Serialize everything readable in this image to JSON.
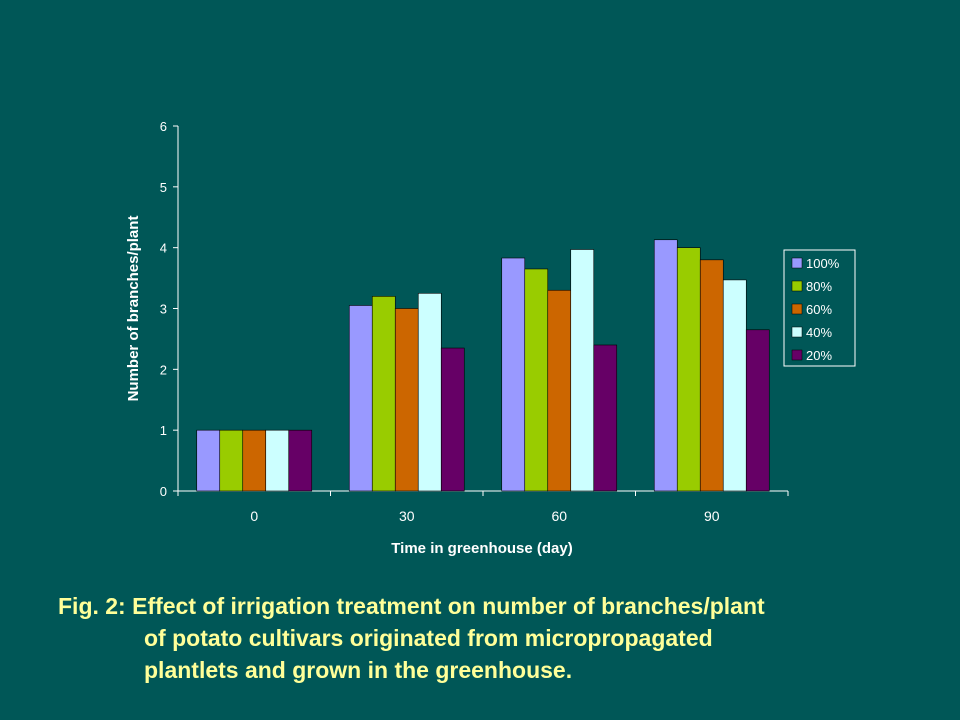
{
  "chart_data": {
    "type": "bar",
    "title": "",
    "xlabel": "Time in greenhouse (day)",
    "ylabel": "Number of branches/plant",
    "categories": [
      "0",
      "30",
      "60",
      "90"
    ],
    "ylim": [
      0,
      6
    ],
    "yticks": [
      "0",
      "1",
      "2",
      "3",
      "4",
      "5",
      "6"
    ],
    "legend_position": "right",
    "series": [
      {
        "name": "100%",
        "color": "#9999ff",
        "values": [
          1.0,
          3.05,
          3.83,
          4.13
        ]
      },
      {
        "name": "80%",
        "color": "#99cc00",
        "values": [
          1.0,
          3.2,
          3.65,
          4.0
        ]
      },
      {
        "name": "60%",
        "color": "#cc6600",
        "values": [
          1.0,
          3.0,
          3.3,
          3.8
        ]
      },
      {
        "name": "40%",
        "color": "#ccffff",
        "values": [
          1.0,
          3.25,
          3.97,
          3.47
        ]
      },
      {
        "name": "20%",
        "color": "#660066",
        "values": [
          1.0,
          2.35,
          2.4,
          2.65
        ]
      }
    ]
  },
  "colors": {
    "background": "#005757",
    "text": "#ffffff",
    "caption": "#ffff99",
    "axis": "#ffffff"
  },
  "caption": {
    "line1": "Fig. 2: Effect of irrigation treatment on number of branches/plant",
    "line2": "of potato cultivars originated from micropropagated",
    "line3": "plantlets and grown in the greenhouse."
  }
}
